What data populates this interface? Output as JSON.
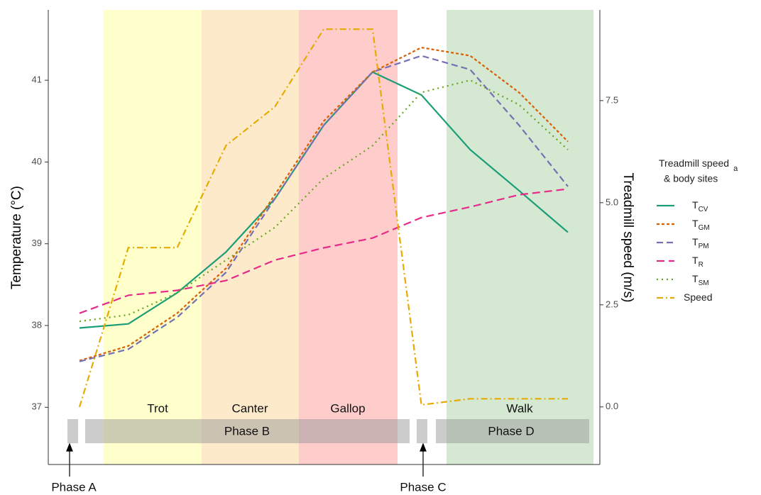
{
  "chart_data": {
    "type": "line",
    "y_label": "Temperature (°C)",
    "y2_label": "Treadmill speed (m/s)",
    "legend_title": "Treadmill speed",
    "legend_title_subscript": "a",
    "legend_title_line2": "& body sites",
    "categories": [
      null,
      null,
      null,
      null,
      null,
      null,
      null,
      null,
      null,
      null,
      null
    ],
    "ylim": [
      36.3,
      41.86
    ],
    "yticks": [
      37,
      38,
      39,
      40,
      41
    ],
    "y2lim": [
      -1.41,
      9.72
    ],
    "y2ticks": [
      {
        "value": 0,
        "label": "0.0"
      },
      {
        "value": 2.5,
        "label": "2.5"
      },
      {
        "value": 5,
        "label": "5.0"
      },
      {
        "value": 7.5,
        "label": "7.5"
      }
    ],
    "gaits": [
      "Trot",
      "Canter",
      "Gallop",
      "Walk"
    ],
    "phases": [
      "Phase A",
      "Phase B",
      "Phase C",
      "Phase D"
    ],
    "series": [
      {
        "name": "T",
        "subscript": "CV",
        "color": "#1b9e77",
        "values": [
          37.97,
          38.02,
          38.4,
          38.9,
          39.55,
          40.45,
          41.1,
          40.82,
          40.15,
          39.65,
          39.14
        ]
      },
      {
        "name": "T",
        "subscript": "GM",
        "color": "#d95f02",
        "values": [
          37.57,
          37.75,
          38.15,
          38.7,
          39.6,
          40.5,
          41.1,
          41.4,
          41.3,
          40.85,
          40.25
        ]
      },
      {
        "name": "T",
        "subscript": "PM",
        "color": "#7570b3",
        "values": [
          37.56,
          37.71,
          38.1,
          38.65,
          39.55,
          40.45,
          41.1,
          41.3,
          41.13,
          40.45,
          39.7
        ]
      },
      {
        "name": "T",
        "subscript": "R",
        "color": "#e7298a",
        "values": [
          38.15,
          38.37,
          38.43,
          38.55,
          38.8,
          38.95,
          39.07,
          39.32,
          39.45,
          39.6,
          39.67
        ]
      },
      {
        "name": "T",
        "subscript": "SM",
        "color": "#66a61e",
        "values": [
          38.05,
          38.13,
          38.4,
          38.8,
          39.2,
          39.8,
          40.2,
          40.85,
          41.0,
          40.7,
          40.15
        ]
      },
      {
        "name": "Speed",
        "color": "#e6ab02",
        "axis": "y2",
        "values": [
          0,
          3.9,
          3.9,
          6.4,
          7.35,
          9.25,
          9.25,
          0.05,
          0.2,
          0.2,
          0.2
        ]
      }
    ]
  }
}
